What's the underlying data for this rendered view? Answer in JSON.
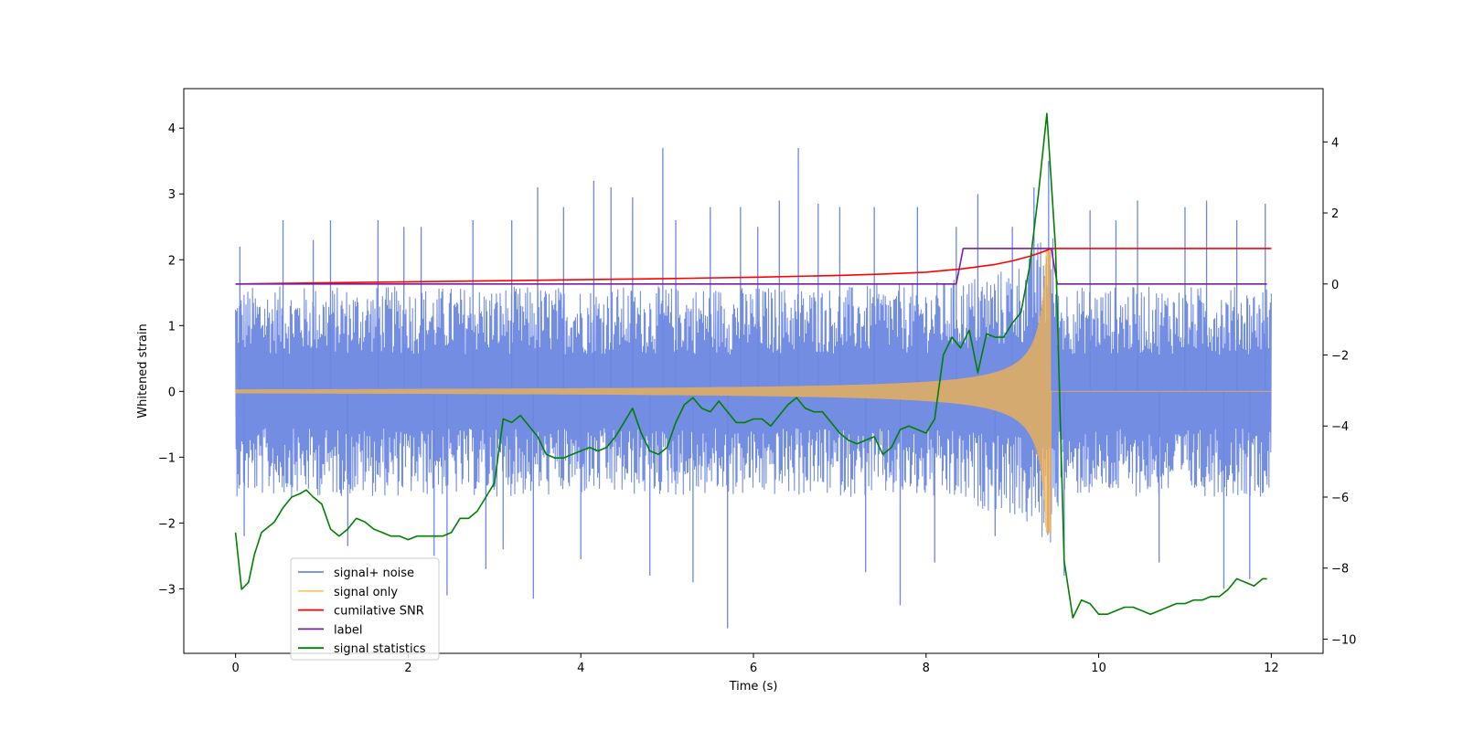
{
  "chart_data": {
    "type": "line",
    "title": "",
    "xlabel": "Time (s)",
    "ylabel": "Whitened strain",
    "y2label": "",
    "xlim": [
      -0.6,
      12.6
    ],
    "ylim": [
      -3.98,
      4.6
    ],
    "y2lim": [
      -10.4,
      5.5
    ],
    "xticks": [
      0,
      2,
      4,
      6,
      8,
      10,
      12
    ],
    "yticks": [
      -3,
      -2,
      -1,
      0,
      1,
      2,
      3,
      4
    ],
    "y2ticks": [
      -10,
      -8,
      -6,
      -4,
      -2,
      0,
      2,
      4
    ],
    "legend_position": "lower-left",
    "series": [
      {
        "name": "signal+ noise",
        "color": "#6b87e2",
        "axis": "left",
        "kind": "noise",
        "envelope": {
          "x": [
            0,
            1,
            2,
            3,
            4,
            5,
            6,
            7,
            8,
            8.5,
            9,
            9.2,
            9.35,
            9.45,
            9.55,
            10,
            11,
            12
          ],
          "upper": [
            1.6,
            1.6,
            1.6,
            1.6,
            1.6,
            1.6,
            1.6,
            1.6,
            1.65,
            1.75,
            1.9,
            2.1,
            2.4,
            2.6,
            1.6,
            1.6,
            1.6,
            1.6
          ],
          "lower": [
            -1.6,
            -1.6,
            -1.6,
            -1.6,
            -1.6,
            -1.6,
            -1.6,
            -1.6,
            -1.65,
            -1.75,
            -1.9,
            -2.1,
            -2.3,
            -2.4,
            -1.6,
            -1.6,
            -1.6,
            -1.6
          ]
        },
        "peaks": [
          {
            "x": 0.05,
            "y": 2.2
          },
          {
            "x": 0.1,
            "y": -2.2
          },
          {
            "x": 0.55,
            "y": 2.6
          },
          {
            "x": 0.9,
            "y": 2.3
          },
          {
            "x": 1.1,
            "y": 2.6
          },
          {
            "x": 1.3,
            "y": -2.35
          },
          {
            "x": 1.65,
            "y": 2.6
          },
          {
            "x": 1.95,
            "y": 2.5
          },
          {
            "x": 2.15,
            "y": 2.5
          },
          {
            "x": 2.3,
            "y": -2.5
          },
          {
            "x": 2.45,
            "y": -3.1
          },
          {
            "x": 2.75,
            "y": 2.6
          },
          {
            "x": 2.9,
            "y": -2.7
          },
          {
            "x": 3.1,
            "y": -2.4
          },
          {
            "x": 3.2,
            "y": 2.6
          },
          {
            "x": 3.45,
            "y": -3.15
          },
          {
            "x": 3.5,
            "y": 3.1
          },
          {
            "x": 3.8,
            "y": 2.8
          },
          {
            "x": 4.0,
            "y": -2.55
          },
          {
            "x": 4.15,
            "y": 3.2
          },
          {
            "x": 4.35,
            "y": 3.1
          },
          {
            "x": 4.6,
            "y": 2.95
          },
          {
            "x": 4.8,
            "y": -2.8
          },
          {
            "x": 4.95,
            "y": 3.7
          },
          {
            "x": 5.1,
            "y": 2.6
          },
          {
            "x": 5.3,
            "y": -2.9
          },
          {
            "x": 5.5,
            "y": 2.8
          },
          {
            "x": 5.7,
            "y": -3.6
          },
          {
            "x": 5.85,
            "y": 2.8
          },
          {
            "x": 6.05,
            "y": 2.5
          },
          {
            "x": 6.3,
            "y": 2.9
          },
          {
            "x": 6.52,
            "y": 3.7
          },
          {
            "x": 6.75,
            "y": 2.85
          },
          {
            "x": 7.0,
            "y": 2.8
          },
          {
            "x": 7.3,
            "y": -2.75
          },
          {
            "x": 7.4,
            "y": 2.8
          },
          {
            "x": 7.7,
            "y": -3.25
          },
          {
            "x": 7.9,
            "y": 2.8
          },
          {
            "x": 8.1,
            "y": -2.6
          },
          {
            "x": 8.35,
            "y": 2.5
          },
          {
            "x": 8.6,
            "y": 3.0
          },
          {
            "x": 8.8,
            "y": -2.2
          },
          {
            "x": 9.0,
            "y": 2.5
          },
          {
            "x": 9.25,
            "y": 3.1
          },
          {
            "x": 9.42,
            "y": 3.5
          },
          {
            "x": 9.6,
            "y": -2.8
          },
          {
            "x": 9.9,
            "y": 2.75
          },
          {
            "x": 10.2,
            "y": 2.6
          },
          {
            "x": 10.45,
            "y": 2.9
          },
          {
            "x": 10.7,
            "y": -2.6
          },
          {
            "x": 11.0,
            "y": 2.8
          },
          {
            "x": 11.25,
            "y": 2.9
          },
          {
            "x": 11.45,
            "y": -3.0
          },
          {
            "x": 11.6,
            "y": 2.6
          },
          {
            "x": 11.75,
            "y": -2.85
          },
          {
            "x": 11.93,
            "y": 2.85
          }
        ]
      },
      {
        "name": "signal only",
        "color": "#f5b44a",
        "axis": "left",
        "kind": "chirp",
        "x_start": 0,
        "merger_time": 9.45,
        "x_end": 12,
        "amplitude_start": 0.03,
        "amplitude_peak": 2.15
      },
      {
        "name": "cumilative SNR",
        "color": "#ff0000",
        "axis": "right",
        "kind": "line",
        "x": [
          0,
          1,
          2,
          3,
          4,
          5,
          6,
          7,
          7.5,
          8,
          8.4,
          8.8,
          9.0,
          9.2,
          9.35,
          9.45,
          12
        ],
        "values": [
          0.0,
          0.03,
          0.06,
          0.09,
          0.12,
          0.15,
          0.19,
          0.24,
          0.28,
          0.33,
          0.42,
          0.55,
          0.65,
          0.78,
          0.9,
          1.0,
          1.0
        ]
      },
      {
        "name": "label",
        "color": "#7b1fa2",
        "axis": "right",
        "kind": "line",
        "x": [
          0,
          8.35,
          8.43,
          9.45,
          9.52,
          11.95
        ],
        "values": [
          0,
          0,
          1,
          1,
          0,
          0
        ]
      },
      {
        "name": "signal statistics",
        "color": "#008000",
        "axis": "right",
        "kind": "line",
        "x": [
          0,
          0.07,
          0.15,
          0.22,
          0.3,
          0.45,
          0.55,
          0.65,
          0.75,
          0.82,
          0.9,
          1.0,
          1.1,
          1.2,
          1.3,
          1.4,
          1.5,
          1.6,
          1.7,
          1.8,
          1.9,
          2.0,
          2.1,
          2.2,
          2.3,
          2.4,
          2.5,
          2.6,
          2.7,
          2.8,
          2.9,
          3.0,
          3.1,
          3.2,
          3.3,
          3.4,
          3.5,
          3.6,
          3.7,
          3.8,
          3.9,
          4.0,
          4.1,
          4.2,
          4.3,
          4.4,
          4.5,
          4.6,
          4.7,
          4.8,
          4.9,
          5.0,
          5.1,
          5.2,
          5.3,
          5.4,
          5.5,
          5.6,
          5.7,
          5.8,
          5.9,
          6.0,
          6.1,
          6.2,
          6.3,
          6.4,
          6.5,
          6.6,
          6.7,
          6.8,
          6.9,
          7.0,
          7.1,
          7.2,
          7.3,
          7.4,
          7.5,
          7.6,
          7.7,
          7.8,
          7.9,
          8.0,
          8.1,
          8.2,
          8.3,
          8.4,
          8.5,
          8.6,
          8.7,
          8.8,
          8.9,
          9.0,
          9.1,
          9.2,
          9.3,
          9.4,
          9.5,
          9.6,
          9.7,
          9.8,
          9.9,
          10.0,
          10.1,
          10.2,
          10.3,
          10.4,
          10.5,
          10.6,
          10.7,
          10.8,
          10.9,
          11.0,
          11.1,
          11.2,
          11.3,
          11.4,
          11.5,
          11.6,
          11.7,
          11.8,
          11.9,
          11.95
        ],
        "values": [
          -7.0,
          -8.6,
          -8.4,
          -7.6,
          -7.0,
          -6.7,
          -6.3,
          -6.0,
          -5.9,
          -5.8,
          -6.0,
          -6.2,
          -6.9,
          -7.1,
          -6.9,
          -6.6,
          -6.7,
          -6.9,
          -7.0,
          -7.1,
          -7.1,
          -7.2,
          -7.1,
          -7.1,
          -7.1,
          -7.1,
          -7.0,
          -6.6,
          -6.6,
          -6.4,
          -6.0,
          -5.6,
          -3.8,
          -3.9,
          -3.7,
          -4.0,
          -4.3,
          -4.8,
          -4.9,
          -4.9,
          -4.8,
          -4.7,
          -4.6,
          -4.7,
          -4.6,
          -4.3,
          -3.9,
          -3.5,
          -4.2,
          -4.7,
          -4.8,
          -4.6,
          -3.9,
          -3.4,
          -3.2,
          -3.5,
          -3.6,
          -3.3,
          -3.6,
          -3.9,
          -3.9,
          -3.8,
          -3.8,
          -4.0,
          -3.7,
          -3.4,
          -3.2,
          -3.5,
          -3.6,
          -3.6,
          -3.9,
          -4.2,
          -4.4,
          -4.5,
          -4.4,
          -4.3,
          -4.8,
          -4.6,
          -4.1,
          -4.0,
          -4.1,
          -4.2,
          -3.8,
          -2.0,
          -1.5,
          -1.8,
          -1.3,
          -2.5,
          -1.4,
          -1.5,
          -1.5,
          -1.1,
          -0.8,
          0.5,
          2.5,
          4.8,
          1.0,
          -7.8,
          -9.4,
          -8.9,
          -9.0,
          -9.3,
          -9.3,
          -9.2,
          -9.1,
          -9.1,
          -9.2,
          -9.3,
          -9.2,
          -9.1,
          -9.0,
          -9.0,
          -8.9,
          -8.9,
          -8.8,
          -8.8,
          -8.6,
          -8.3,
          -8.4,
          -8.5,
          -8.3,
          -8.3
        ]
      }
    ]
  }
}
